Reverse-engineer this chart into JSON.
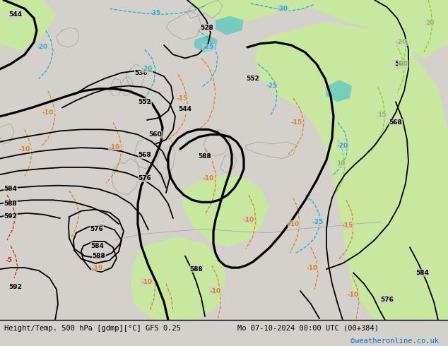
{
  "title_left": "Height/Temp. 500 hPa [gdmp][°C] GFS 0.25",
  "title_right": "Mo 07-10-2024 00:00 UTC (00+384)",
  "credit": "©weatheronline.co.uk",
  "bg_color": "#d4d0cc",
  "green_color": "#c8e8a0",
  "teal_color": "#60c8c0",
  "geo_color": "#000000",
  "temp_orange_color": "#e08020",
  "temp_cyan_color": "#20b0c8",
  "temp_red_color": "#cc2020",
  "temp_lgreen_color": "#80c840",
  "credit_color": "#1a6fb5",
  "fig_width": 6.34,
  "fig_height": 4.9,
  "dpi": 100
}
